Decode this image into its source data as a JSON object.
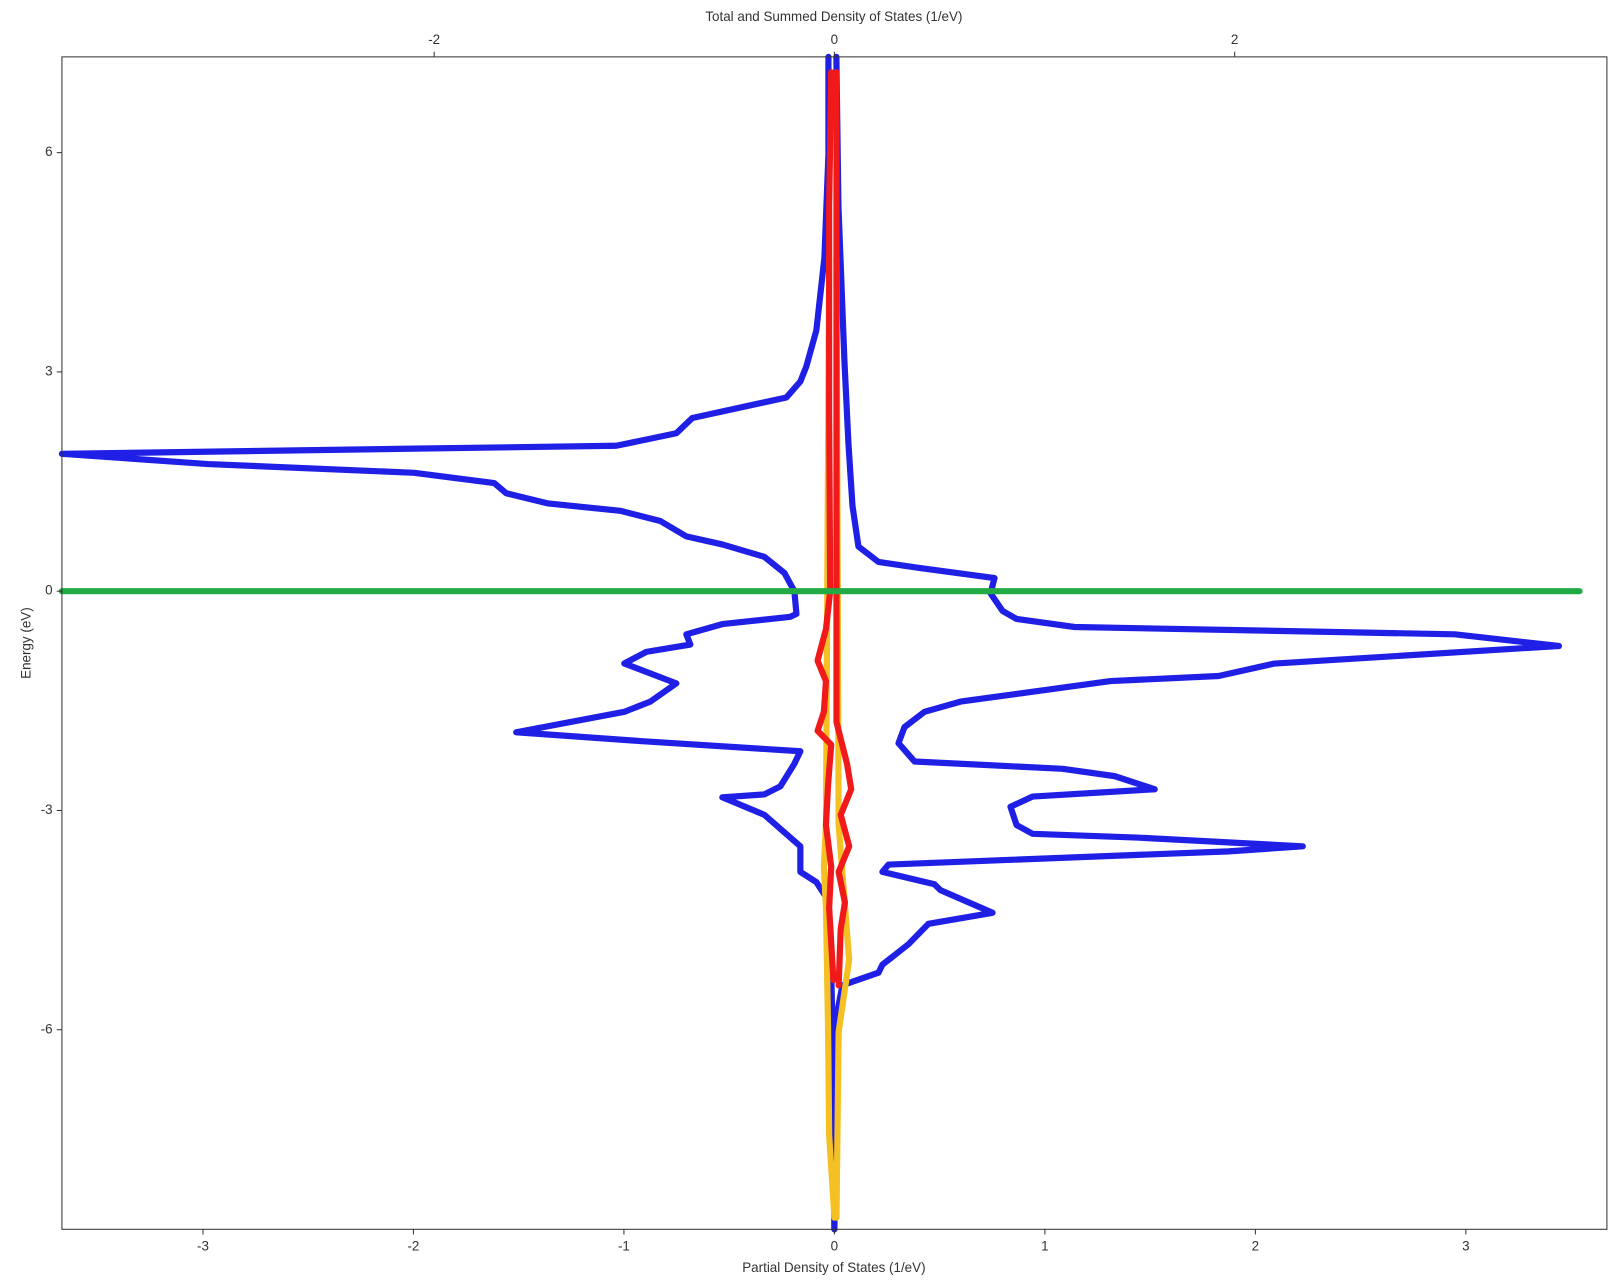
{
  "chart_data": {
    "type": "line",
    "title": "Total and Summed Density of States (1/eV)",
    "xlabel": "Partial Density of States (1/eV)",
    "ylabel": "Energy (eV)",
    "xlim": [
      -3.67,
      3.67
    ],
    "xticks": [
      -3,
      -2,
      -1,
      0,
      1,
      2,
      3
    ],
    "x2lim": [
      -3.86,
      3.86
    ],
    "x2ticks": [
      -2,
      0,
      2
    ],
    "ylim": [
      -8.73,
      7.31
    ],
    "yticks": [
      -6,
      -3,
      0,
      3,
      6
    ],
    "grid": false,
    "series": [
      {
        "color": "#1f1fe6",
        "axis": "x2",
        "x": [
          -0.03,
          -0.03,
          -0.05,
          -0.09,
          -0.14,
          -0.17,
          -0.24,
          -0.71,
          -0.79,
          -1.09,
          -2.1,
          -3.86,
          -3.13,
          -2.1,
          -1.7,
          -1.64,
          -1.43,
          -1.07,
          -0.87,
          -0.74,
          -0.56,
          -0.35,
          -0.25,
          -0.2,
          -0.19,
          -0.22,
          -0.56,
          -0.74,
          -0.72,
          -0.94,
          -1.05,
          -0.79,
          -0.92,
          -1.05,
          -1.59,
          -0.97,
          -0.17,
          -0.2,
          -0.27,
          -0.35,
          -0.56,
          -0.35,
          -0.17,
          -0.17,
          -0.09,
          -0.04,
          -0.02,
          -0.01,
          0
        ],
        "y": [
          7.31,
          5.97,
          4.56,
          3.57,
          3.08,
          2.87,
          2.65,
          2.37,
          2.16,
          1.99,
          1.95,
          1.88,
          1.74,
          1.62,
          1.48,
          1.34,
          1.2,
          1.1,
          0.96,
          0.75,
          0.64,
          0.47,
          0.25,
          0.0,
          -0.31,
          -0.35,
          -0.45,
          -0.59,
          -0.73,
          -0.83,
          -0.99,
          -1.26,
          -1.51,
          -1.65,
          -1.93,
          -2.05,
          -2.19,
          -2.36,
          -2.67,
          -2.78,
          -2.82,
          -3.06,
          -3.49,
          -3.84,
          -3.98,
          -4.19,
          -4.62,
          -6.03,
          -8.73
        ]
      },
      {
        "color": "#1f1fe6",
        "axis": "x2",
        "x": [
          0.01,
          0.02,
          0.05,
          0.07,
          0.09,
          0.12,
          0.22,
          0.42,
          0.8,
          0.78,
          0.84,
          0.91,
          1.2,
          3.1,
          3.62,
          2.2,
          1.92,
          1.38,
          0.63,
          0.45,
          0.35,
          0.32,
          0.4,
          1.14,
          1.4,
          1.6,
          0.99,
          0.88,
          0.91,
          0.99,
          1.51,
          2.34,
          1.97,
          0.27,
          0.24,
          0.5,
          0.53,
          0.79,
          0.47,
          0.37,
          0.24,
          0.22,
          0.04,
          0.01,
          0
        ],
        "y": [
          7.31,
          5.27,
          3.15,
          2.02,
          1.17,
          0.61,
          0.4,
          0.32,
          0.18,
          -0.03,
          -0.27,
          -0.38,
          -0.49,
          -0.59,
          -0.75,
          -0.99,
          -1.16,
          -1.23,
          -1.51,
          -1.65,
          -1.86,
          -2.08,
          -2.33,
          -2.43,
          -2.53,
          -2.71,
          -2.81,
          -2.95,
          -3.2,
          -3.32,
          -3.37,
          -3.49,
          -3.56,
          -3.74,
          -3.84,
          -4.01,
          -4.09,
          -4.4,
          -4.55,
          -4.83,
          -5.11,
          -5.22,
          -5.39,
          -5.82,
          -8.73
        ]
      },
      {
        "color": "#f5c023",
        "x": [
          -0.025,
          -0.04,
          -0.05,
          -0.04,
          -0.03,
          -0.025,
          0
        ],
        "y": [
          4.56,
          -3.2,
          -3.77,
          -4.33,
          -6.03,
          -7.44,
          -8.57
        ]
      },
      {
        "color": "#f5c023",
        "x": [
          0.01,
          0.02,
          0.07,
          0.02,
          0.01
        ],
        "y": [
          4.56,
          -3.2,
          -5.04,
          -6.03,
          -8.57
        ]
      },
      {
        "color": "#f01a1a",
        "x": [
          -0.015,
          -0.025,
          -0.025,
          -0.02,
          -0.04,
          -0.06,
          -0.08,
          -0.04,
          -0.05,
          -0.08,
          -0.015,
          -0.03,
          -0.04,
          -0.015,
          -0.025,
          -0.005
        ],
        "y": [
          7.1,
          5.27,
          2.44,
          0,
          -0.52,
          -0.73,
          -0.95,
          -1.23,
          -1.65,
          -1.91,
          -2.1,
          -2.64,
          -3.2,
          -3.77,
          -4.33,
          -5.32
        ]
      },
      {
        "color": "#f01a1a",
        "x": [
          0.01,
          0.01,
          0.01,
          0.06,
          0.08,
          0.03,
          0.07,
          0.02,
          0.05,
          0.03,
          0.02
        ],
        "y": [
          7.1,
          0,
          -1.79,
          -2.36,
          -2.71,
          -3.06,
          -3.49,
          -3.84,
          -4.26,
          -4.62,
          -5.39
        ]
      },
      {
        "color": "#22aa44",
        "x": [
          -3.67,
          3.54
        ],
        "y": [
          0,
          0
        ]
      }
    ]
  }
}
